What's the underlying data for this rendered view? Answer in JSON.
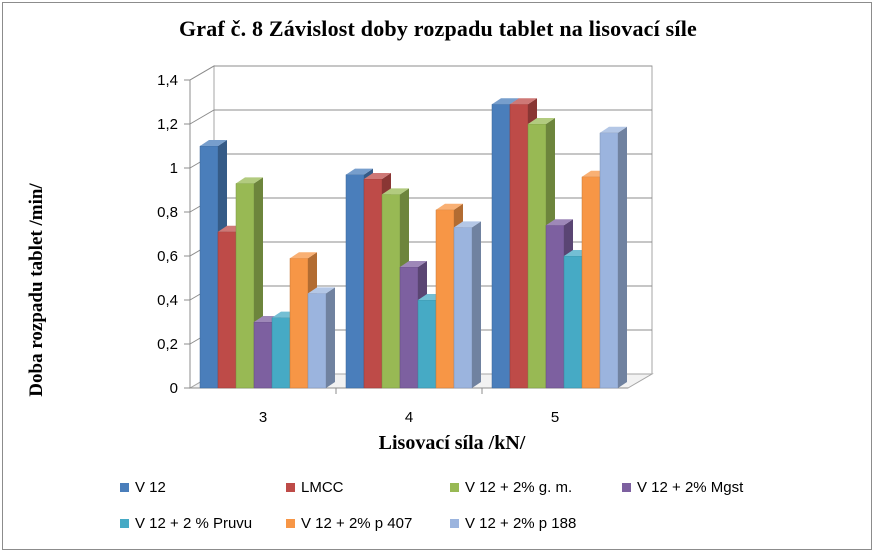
{
  "chart_data": {
    "type": "bar",
    "title": "Graf č. 8  Závislost doby rozpadu tablet na lisovací síle",
    "xlabel": "Lisovací síla /kN/",
    "ylabel": "Doba rozpadu tablet /min/",
    "categories": [
      "3",
      "4",
      "5"
    ],
    "ylim": [
      0,
      1.4
    ],
    "yticks": [
      "0",
      "0,2",
      "0,4",
      "0,6",
      "0,8",
      "1",
      "1,2",
      "1,4"
    ],
    "grid": true,
    "legend_position": "bottom",
    "series": [
      {
        "name": "V 12",
        "color": "#4a7ebb",
        "values": [
          1.1,
          0.97,
          1.29
        ]
      },
      {
        "name": "LMCC",
        "color": "#be4b48",
        "values": [
          0.71,
          0.95,
          1.29
        ]
      },
      {
        "name": "V 12 + 2% g. m.",
        "color": "#98b954",
        "values": [
          0.93,
          0.88,
          1.2
        ]
      },
      {
        "name": "V 12 + 2% Mgst",
        "color": "#7d60a0",
        "values": [
          0.3,
          0.55,
          0.74
        ]
      },
      {
        "name": "V 12 + 2 % Pruvu",
        "color": "#46aac5",
        "values": [
          0.32,
          0.4,
          0.6
        ]
      },
      {
        "name": "V 12 + 2% p 407",
        "color": "#f79646",
        "values": [
          0.59,
          0.81,
          0.96
        ]
      },
      {
        "name": "V 12 + 2% p 188",
        "color": "#9bb4de",
        "values": [
          0.43,
          0.73,
          1.16
        ]
      }
    ]
  }
}
